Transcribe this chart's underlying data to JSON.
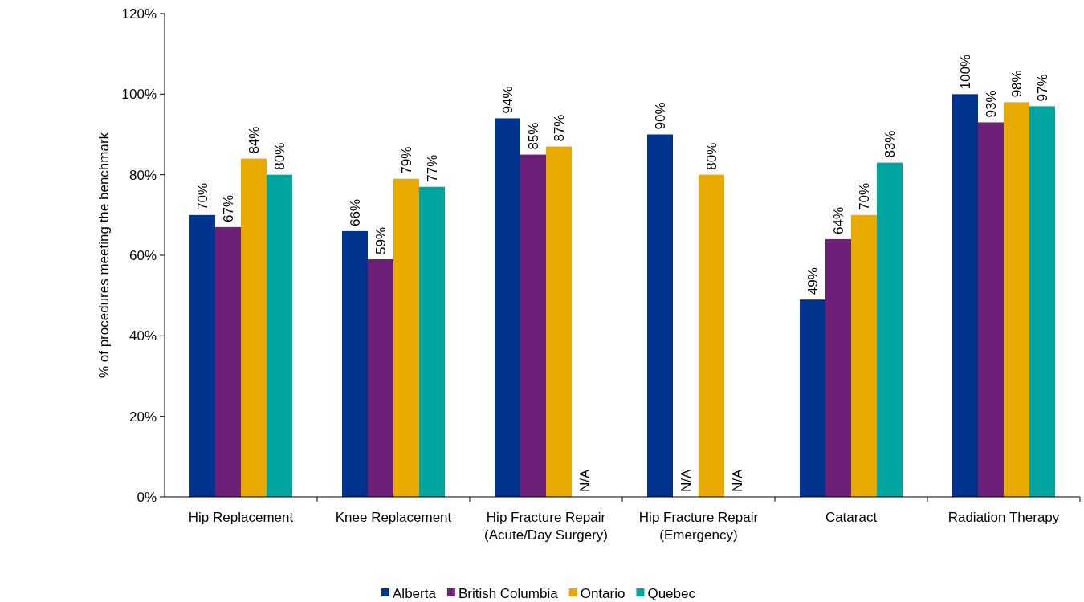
{
  "chart_data": {
    "type": "bar",
    "ylabel": "% of procedures meeting the benchmark",
    "categories": [
      "Hip Replacement",
      "Knee Replacement",
      "Hip Fracture Repair (Acute/Day Surgery)",
      "Hip Fracture Repair (Emergency)",
      "Cataract",
      "Radiation Therapy"
    ],
    "series": [
      {
        "name": "Alberta",
        "color": "#00338d",
        "values": [
          70,
          66,
          94,
          90,
          49,
          100
        ],
        "value_labels": [
          "70%",
          "66%",
          "94%",
          "90%",
          "49%",
          "100%"
        ]
      },
      {
        "name": "British Columbia",
        "color": "#6d2077",
        "values": [
          67,
          59,
          85,
          null,
          64,
          93
        ],
        "value_labels": [
          "67%",
          "59%",
          "85%",
          "N/A",
          "64%",
          "93%"
        ]
      },
      {
        "name": "Ontario",
        "color": "#e8a900",
        "values": [
          84,
          79,
          87,
          80,
          70,
          98
        ],
        "value_labels": [
          "84%",
          "79%",
          "87%",
          "80%",
          "70%",
          "98%"
        ]
      },
      {
        "name": "Quebec",
        "color": "#00a5a0",
        "values": [
          80,
          77,
          null,
          null,
          83,
          97
        ],
        "value_labels": [
          "80%",
          "77%",
          "N/A",
          "N/A",
          "83%",
          "97%"
        ]
      }
    ],
    "ylim": [
      0,
      120
    ],
    "yticks": [
      {
        "value": 0,
        "label": "0%"
      },
      {
        "value": 20,
        "label": "20%"
      },
      {
        "value": 40,
        "label": "40%"
      },
      {
        "value": 60,
        "label": "60%"
      },
      {
        "value": 80,
        "label": "80%"
      },
      {
        "value": 100,
        "label": "100%"
      },
      {
        "value": 120,
        "label": "120%"
      }
    ],
    "grid": false,
    "legend": "bottom"
  }
}
